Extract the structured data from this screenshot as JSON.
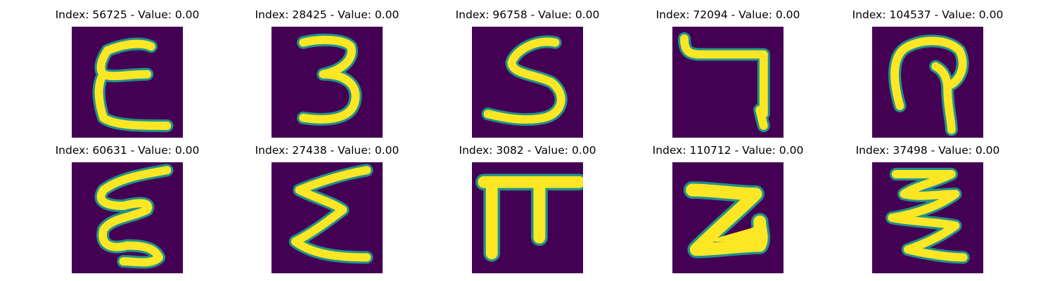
{
  "colors": {
    "background": "#440154",
    "stroke": "#fde725",
    "edge": "#21918c"
  },
  "samples": [
    {
      "index": "56725",
      "value": "0.00",
      "glyph": "ε",
      "title": "Index: 56725 - Value: 0.00"
    },
    {
      "index": "28425",
      "value": "0.00",
      "glyph": "3",
      "title": "Index: 28425 - Value: 0.00"
    },
    {
      "index": "96758",
      "value": "0.00",
      "glyph": "S",
      "title": "Index: 96758 - Value: 0.00"
    },
    {
      "index": "72094",
      "value": "0.00",
      "glyph": "7",
      "title": "Index: 72094 - Value: 0.00"
    },
    {
      "index": "104537",
      "value": "0.00",
      "glyph": "?",
      "title": "Index: 104537 - Value: 0.00"
    },
    {
      "index": "60631",
      "value": "0.00",
      "glyph": "ξ",
      "title": "Index: 60631 - Value: 0.00"
    },
    {
      "index": "27438",
      "value": "0.00",
      "glyph": "Σ",
      "title": "Index: 27438 - Value: 0.00"
    },
    {
      "index": "3082",
      "value": "0.00",
      "glyph": "π",
      "title": "Index: 3082 - Value: 0.00"
    },
    {
      "index": "110712",
      "value": "0.00",
      "glyph": "2",
      "title": "Index: 110712 - Value: 0.00"
    },
    {
      "index": "37498",
      "value": "0.00",
      "glyph": "Ʒ",
      "title": "Index: 37498 - Value: 0.00"
    }
  ]
}
